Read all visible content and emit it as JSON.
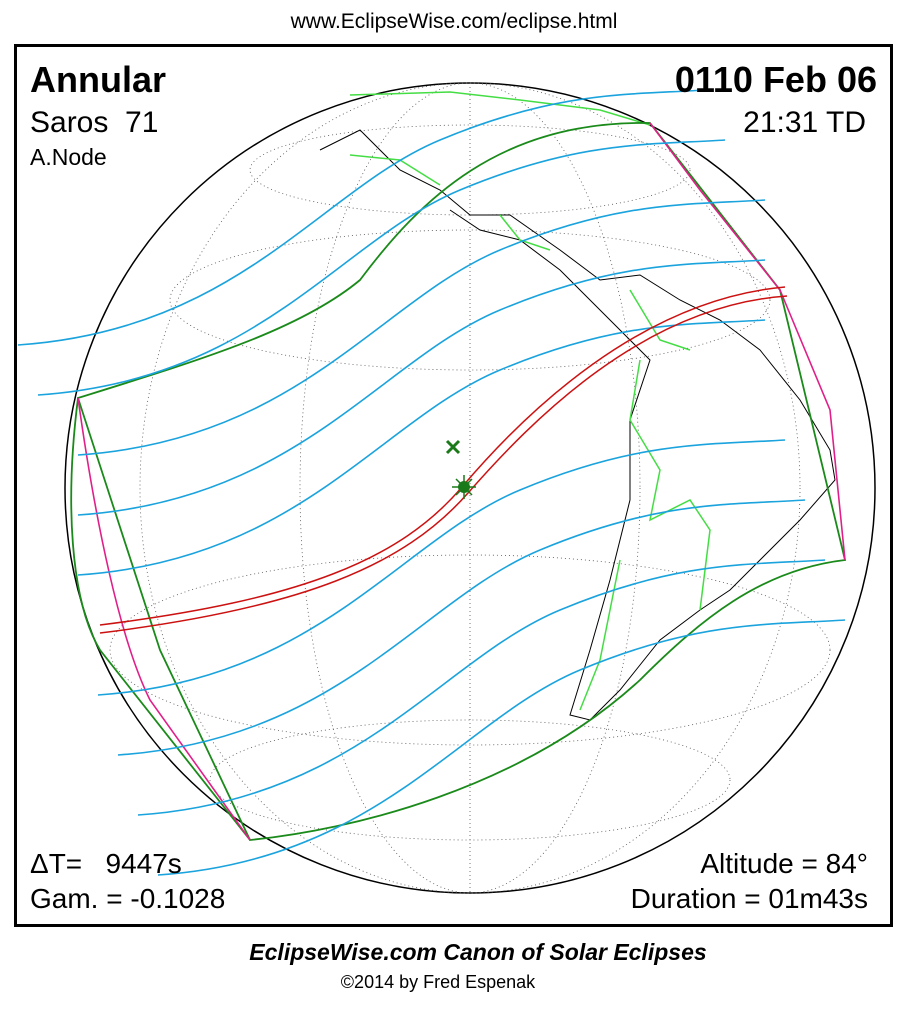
{
  "url": "www.EclipseWise.com/eclipse.html",
  "eclipse_type": "Annular",
  "saros": "Saros  71",
  "node": "A.Node",
  "date": "0110 Feb 06",
  "time": "21:31 TD",
  "delta_t": "ΔT=   9447s",
  "gamma": "Gam. = -0.1028",
  "altitude": "Altitude = 84°",
  "duration": "Duration = 01m43s",
  "footer_title": "EclipseWise.com Canon of Solar Eclipses",
  "copyright": "©2014 by Fred Espenak"
}
